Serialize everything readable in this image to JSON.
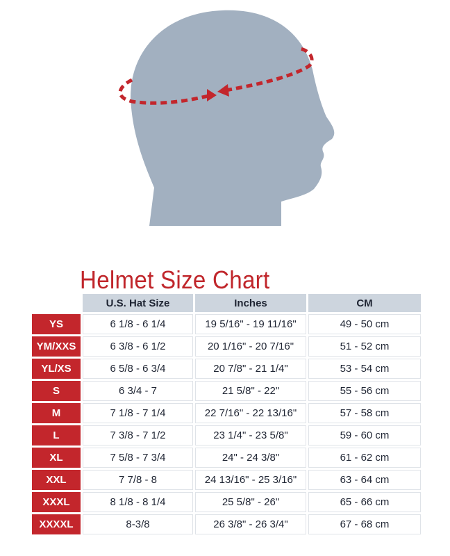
{
  "title": "Helmet Size Chart",
  "colors": {
    "accent_red": "#c3262c",
    "header_bg": "#cdd5de",
    "head_gray": "#a2b0c0"
  },
  "illustration": "head-circumference-icon",
  "headers": [
    "",
    "U.S. Hat Size",
    "Inches",
    "CM"
  ],
  "rows": [
    {
      "size": "YS",
      "hat": "6 1/8 - 6 1/4",
      "inches": "19 5/16\" - 19 11/16\"",
      "cm": "49 - 50 cm"
    },
    {
      "size": "YM/XXS",
      "hat": "6 3/8 - 6 1/2",
      "inches": "20 1/16\" - 20 7/16\"",
      "cm": "51 - 52 cm"
    },
    {
      "size": "YL/XS",
      "hat": "6 5/8 - 6 3/4",
      "inches": "20 7/8\" - 21 1/4\"",
      "cm": "53 - 54 cm"
    },
    {
      "size": "S",
      "hat": "6 3/4 - 7",
      "inches": "21 5/8\" - 22\"",
      "cm": "55 - 56 cm"
    },
    {
      "size": "M",
      "hat": "7 1/8 - 7 1/4",
      "inches": "22 7/16\" - 22 13/16\"",
      "cm": "57 - 58 cm"
    },
    {
      "size": "L",
      "hat": "7 3/8 - 7 1/2",
      "inches": "23 1/4\" - 23 5/8\"",
      "cm": "59 - 60 cm"
    },
    {
      "size": "XL",
      "hat": "7 5/8 - 7 3/4",
      "inches": "24\" - 24 3/8\"",
      "cm": "61 - 62 cm"
    },
    {
      "size": "XXL",
      "hat": "7 7/8 - 8",
      "inches": "24 13/16\" - 25 3/16\"",
      "cm": "63 - 64 cm"
    },
    {
      "size": "XXXL",
      "hat": "8 1/8 - 8 1/4",
      "inches": "25 5/8\" - 26\"",
      "cm": "65 - 66 cm"
    },
    {
      "size": "XXXXL",
      "hat": "8-3/8",
      "inches": "26 3/8\" - 26 3/4\"",
      "cm": "67 - 68 cm"
    }
  ]
}
